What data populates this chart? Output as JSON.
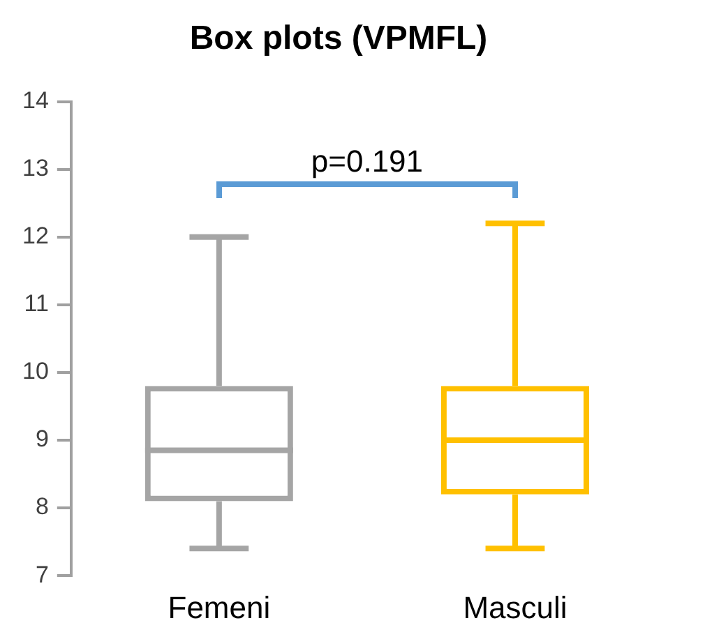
{
  "chart_data": {
    "type": "box",
    "title": "Box plots (VPMFL)",
    "categories": [
      "Femeni",
      "Masculi"
    ],
    "boxes": [
      {
        "low": 7.4,
        "q1": 8.1,
        "median": 8.85,
        "q3": 9.8,
        "high": 12
      },
      {
        "low": 7.4,
        "q1": 8.2,
        "median": 9,
        "q3": 9.8,
        "high": 12.2
      }
    ],
    "colors": [
      "#a5a5a5",
      "#ffc000"
    ],
    "ylim": [
      7,
      14
    ],
    "yticks": [
      7,
      8,
      9,
      10,
      11,
      12,
      13,
      14
    ],
    "grid": false,
    "legend": false,
    "annotations": [
      "p=0.191"
    ]
  }
}
